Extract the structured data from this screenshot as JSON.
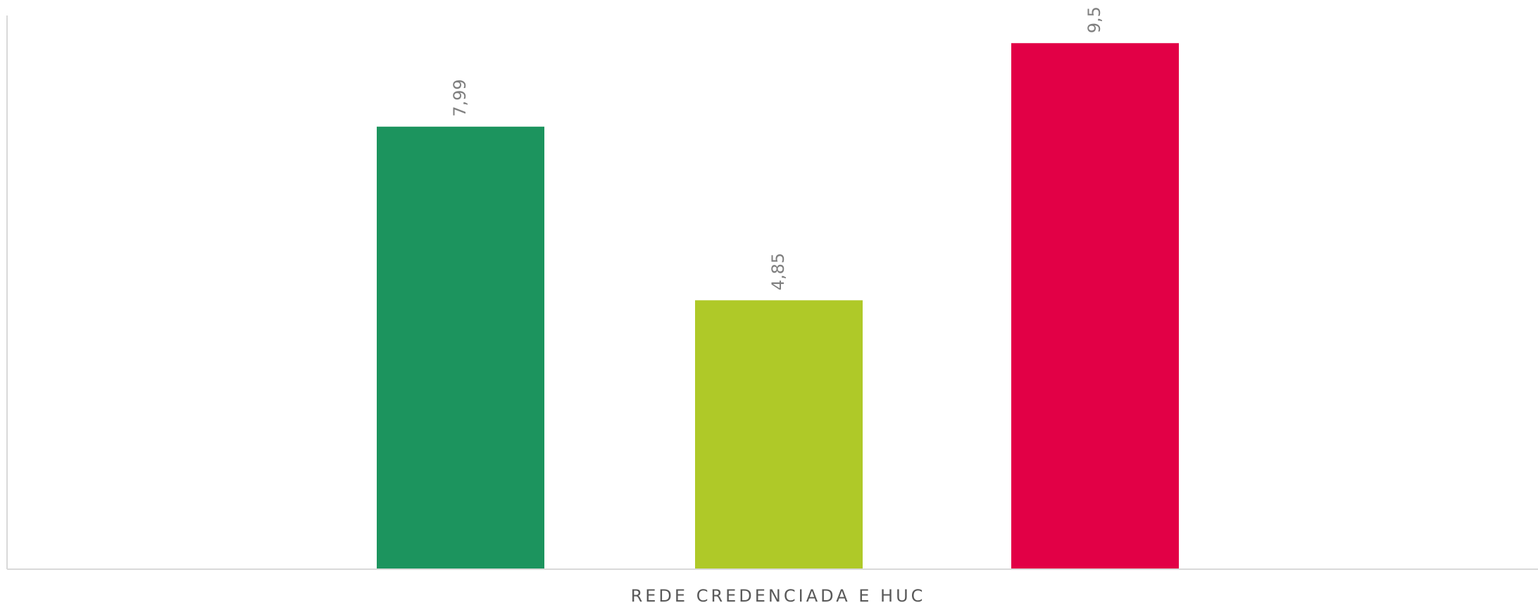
{
  "chart_data": {
    "type": "bar",
    "categories": [
      "REDE CREDENCIADA E HUC"
    ],
    "series": [
      {
        "values": [
          7.99
        ],
        "label": "7,99",
        "color": "#1c945e"
      },
      {
        "values": [
          4.85
        ],
        "label": "4,85",
        "color": "#afc928"
      },
      {
        "values": [
          9.5
        ],
        "label": "9,5",
        "color": "#e20046"
      }
    ],
    "title": "",
    "xlabel": "",
    "ylabel": "",
    "ylim": [
      0,
      10
    ],
    "grid": false,
    "legend": "none",
    "axis_color": "#d9d9d9"
  }
}
